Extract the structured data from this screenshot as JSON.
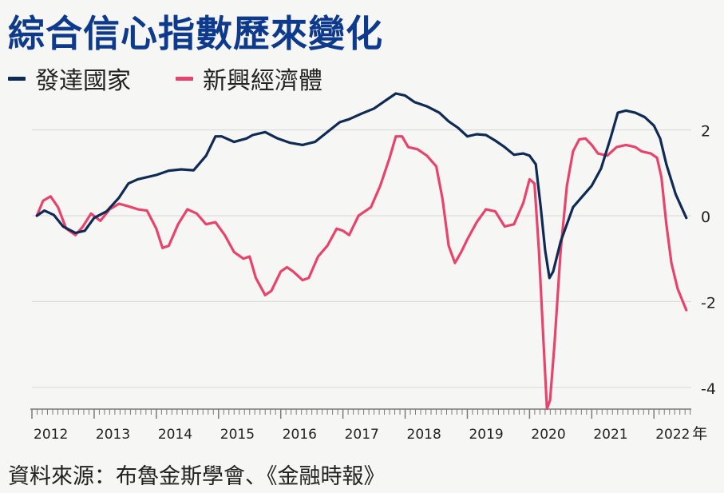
{
  "title": "綜合信心指數歷來變化",
  "source": "資料來源：布魯金斯學會、《金融時報》",
  "colors": {
    "title": "#0d3a8c",
    "developed": "#0f2a54",
    "emerging": "#e8436a",
    "grid": "#dcdcdc",
    "axis": "#7a7a7a",
    "text": "#222222"
  },
  "chart_data": {
    "type": "line",
    "xlabel": "",
    "ylabel": "",
    "x_unit": "年",
    "xlim": [
      2012.0,
      2022.6
    ],
    "ylim": [
      -4.5,
      3.0
    ],
    "x_ticks": [
      2012,
      2013,
      2014,
      2015,
      2016,
      2017,
      2018,
      2019,
      2020,
      2021,
      2022
    ],
    "x_tick_labels": [
      "2012",
      "2013",
      "2014",
      "2015",
      "2016",
      "2017",
      "2018",
      "2019",
      "2020",
      "2021",
      "2022"
    ],
    "y_ticks": [
      2,
      0,
      -2,
      -4
    ],
    "y_tick_labels": [
      "2",
      "0",
      "-2",
      "-4"
    ],
    "grid": true,
    "legend_position": "top-left",
    "series": [
      {
        "name": "發達國家",
        "color": "#0f2a54",
        "points": [
          [
            2012.08,
            0.0
          ],
          [
            2012.2,
            0.12
          ],
          [
            2012.35,
            0.02
          ],
          [
            2012.5,
            -0.25
          ],
          [
            2012.7,
            -0.4
          ],
          [
            2012.85,
            -0.35
          ],
          [
            2013.0,
            -0.05
          ],
          [
            2013.2,
            0.1
          ],
          [
            2013.4,
            0.42
          ],
          [
            2013.55,
            0.75
          ],
          [
            2013.7,
            0.85
          ],
          [
            2013.85,
            0.9
          ],
          [
            2014.0,
            0.95
          ],
          [
            2014.2,
            1.05
          ],
          [
            2014.4,
            1.08
          ],
          [
            2014.6,
            1.06
          ],
          [
            2014.8,
            1.4
          ],
          [
            2014.95,
            1.85
          ],
          [
            2015.05,
            1.85
          ],
          [
            2015.25,
            1.72
          ],
          [
            2015.45,
            1.8
          ],
          [
            2015.55,
            1.88
          ],
          [
            2015.75,
            1.95
          ],
          [
            2015.95,
            1.8
          ],
          [
            2016.15,
            1.7
          ],
          [
            2016.35,
            1.65
          ],
          [
            2016.55,
            1.72
          ],
          [
            2016.75,
            1.95
          ],
          [
            2016.95,
            2.18
          ],
          [
            2017.1,
            2.25
          ],
          [
            2017.3,
            2.38
          ],
          [
            2017.5,
            2.5
          ],
          [
            2017.7,
            2.7
          ],
          [
            2017.85,
            2.85
          ],
          [
            2018.0,
            2.8
          ],
          [
            2018.15,
            2.65
          ],
          [
            2018.35,
            2.55
          ],
          [
            2018.55,
            2.4
          ],
          [
            2018.7,
            2.2
          ],
          [
            2018.85,
            2.05
          ],
          [
            2019.0,
            1.85
          ],
          [
            2019.15,
            1.9
          ],
          [
            2019.3,
            1.88
          ],
          [
            2019.45,
            1.75
          ],
          [
            2019.6,
            1.6
          ],
          [
            2019.75,
            1.42
          ],
          [
            2019.9,
            1.45
          ],
          [
            2020.0,
            1.4
          ],
          [
            2020.1,
            1.2
          ],
          [
            2020.18,
            0.2
          ],
          [
            2020.25,
            -0.8
          ],
          [
            2020.32,
            -1.45
          ],
          [
            2020.38,
            -1.3
          ],
          [
            2020.5,
            -0.6
          ],
          [
            2020.7,
            0.2
          ],
          [
            2020.85,
            0.45
          ],
          [
            2021.0,
            0.7
          ],
          [
            2021.15,
            1.1
          ],
          [
            2021.3,
            1.8
          ],
          [
            2021.42,
            2.4
          ],
          [
            2021.55,
            2.45
          ],
          [
            2021.7,
            2.4
          ],
          [
            2021.85,
            2.3
          ],
          [
            2022.0,
            2.1
          ],
          [
            2022.1,
            1.8
          ],
          [
            2022.2,
            1.2
          ],
          [
            2022.35,
            0.5
          ],
          [
            2022.52,
            -0.05
          ]
        ]
      },
      {
        "name": "新興經濟體",
        "color": "#e8436a",
        "points": [
          [
            2012.08,
            0.0
          ],
          [
            2012.18,
            0.35
          ],
          [
            2012.3,
            0.45
          ],
          [
            2012.42,
            0.2
          ],
          [
            2012.55,
            -0.3
          ],
          [
            2012.7,
            -0.45
          ],
          [
            2012.82,
            -0.25
          ],
          [
            2012.95,
            0.05
          ],
          [
            2013.1,
            -0.12
          ],
          [
            2013.25,
            0.15
          ],
          [
            2013.4,
            0.28
          ],
          [
            2013.55,
            0.22
          ],
          [
            2013.7,
            0.15
          ],
          [
            2013.85,
            0.12
          ],
          [
            2014.0,
            -0.3
          ],
          [
            2014.1,
            -0.75
          ],
          [
            2014.2,
            -0.7
          ],
          [
            2014.35,
            -0.2
          ],
          [
            2014.5,
            0.15
          ],
          [
            2014.65,
            0.05
          ],
          [
            2014.8,
            -0.2
          ],
          [
            2014.95,
            -0.15
          ],
          [
            2015.1,
            -0.45
          ],
          [
            2015.25,
            -0.85
          ],
          [
            2015.4,
            -1.0
          ],
          [
            2015.5,
            -0.95
          ],
          [
            2015.6,
            -1.45
          ],
          [
            2015.75,
            -1.85
          ],
          [
            2015.85,
            -1.75
          ],
          [
            2016.0,
            -1.3
          ],
          [
            2016.1,
            -1.2
          ],
          [
            2016.2,
            -1.3
          ],
          [
            2016.35,
            -1.5
          ],
          [
            2016.45,
            -1.45
          ],
          [
            2016.6,
            -0.95
          ],
          [
            2016.75,
            -0.7
          ],
          [
            2016.9,
            -0.3
          ],
          [
            2017.0,
            -0.35
          ],
          [
            2017.1,
            -0.45
          ],
          [
            2017.25,
            0.0
          ],
          [
            2017.45,
            0.2
          ],
          [
            2017.6,
            0.7
          ],
          [
            2017.75,
            1.35
          ],
          [
            2017.85,
            1.85
          ],
          [
            2017.95,
            1.85
          ],
          [
            2018.05,
            1.6
          ],
          [
            2018.2,
            1.55
          ],
          [
            2018.35,
            1.4
          ],
          [
            2018.5,
            1.15
          ],
          [
            2018.6,
            0.4
          ],
          [
            2018.7,
            -0.7
          ],
          [
            2018.8,
            -1.1
          ],
          [
            2018.9,
            -0.85
          ],
          [
            2019.0,
            -0.55
          ],
          [
            2019.15,
            -0.15
          ],
          [
            2019.3,
            0.15
          ],
          [
            2019.45,
            0.1
          ],
          [
            2019.6,
            -0.25
          ],
          [
            2019.75,
            -0.2
          ],
          [
            2019.9,
            0.3
          ],
          [
            2020.0,
            0.85
          ],
          [
            2020.08,
            0.75
          ],
          [
            2020.15,
            -0.8
          ],
          [
            2020.22,
            -2.8
          ],
          [
            2020.28,
            -4.5
          ],
          [
            2020.33,
            -4.3
          ],
          [
            2020.4,
            -3.0
          ],
          [
            2020.5,
            -0.8
          ],
          [
            2020.6,
            0.7
          ],
          [
            2020.7,
            1.5
          ],
          [
            2020.8,
            1.78
          ],
          [
            2020.9,
            1.8
          ],
          [
            2021.0,
            1.65
          ],
          [
            2021.1,
            1.45
          ],
          [
            2021.25,
            1.4
          ],
          [
            2021.4,
            1.6
          ],
          [
            2021.55,
            1.65
          ],
          [
            2021.7,
            1.6
          ],
          [
            2021.8,
            1.5
          ],
          [
            2021.95,
            1.45
          ],
          [
            2022.05,
            1.35
          ],
          [
            2022.12,
            0.9
          ],
          [
            2022.2,
            -0.2
          ],
          [
            2022.28,
            -1.1
          ],
          [
            2022.38,
            -1.7
          ],
          [
            2022.52,
            -2.2
          ]
        ]
      }
    ]
  }
}
